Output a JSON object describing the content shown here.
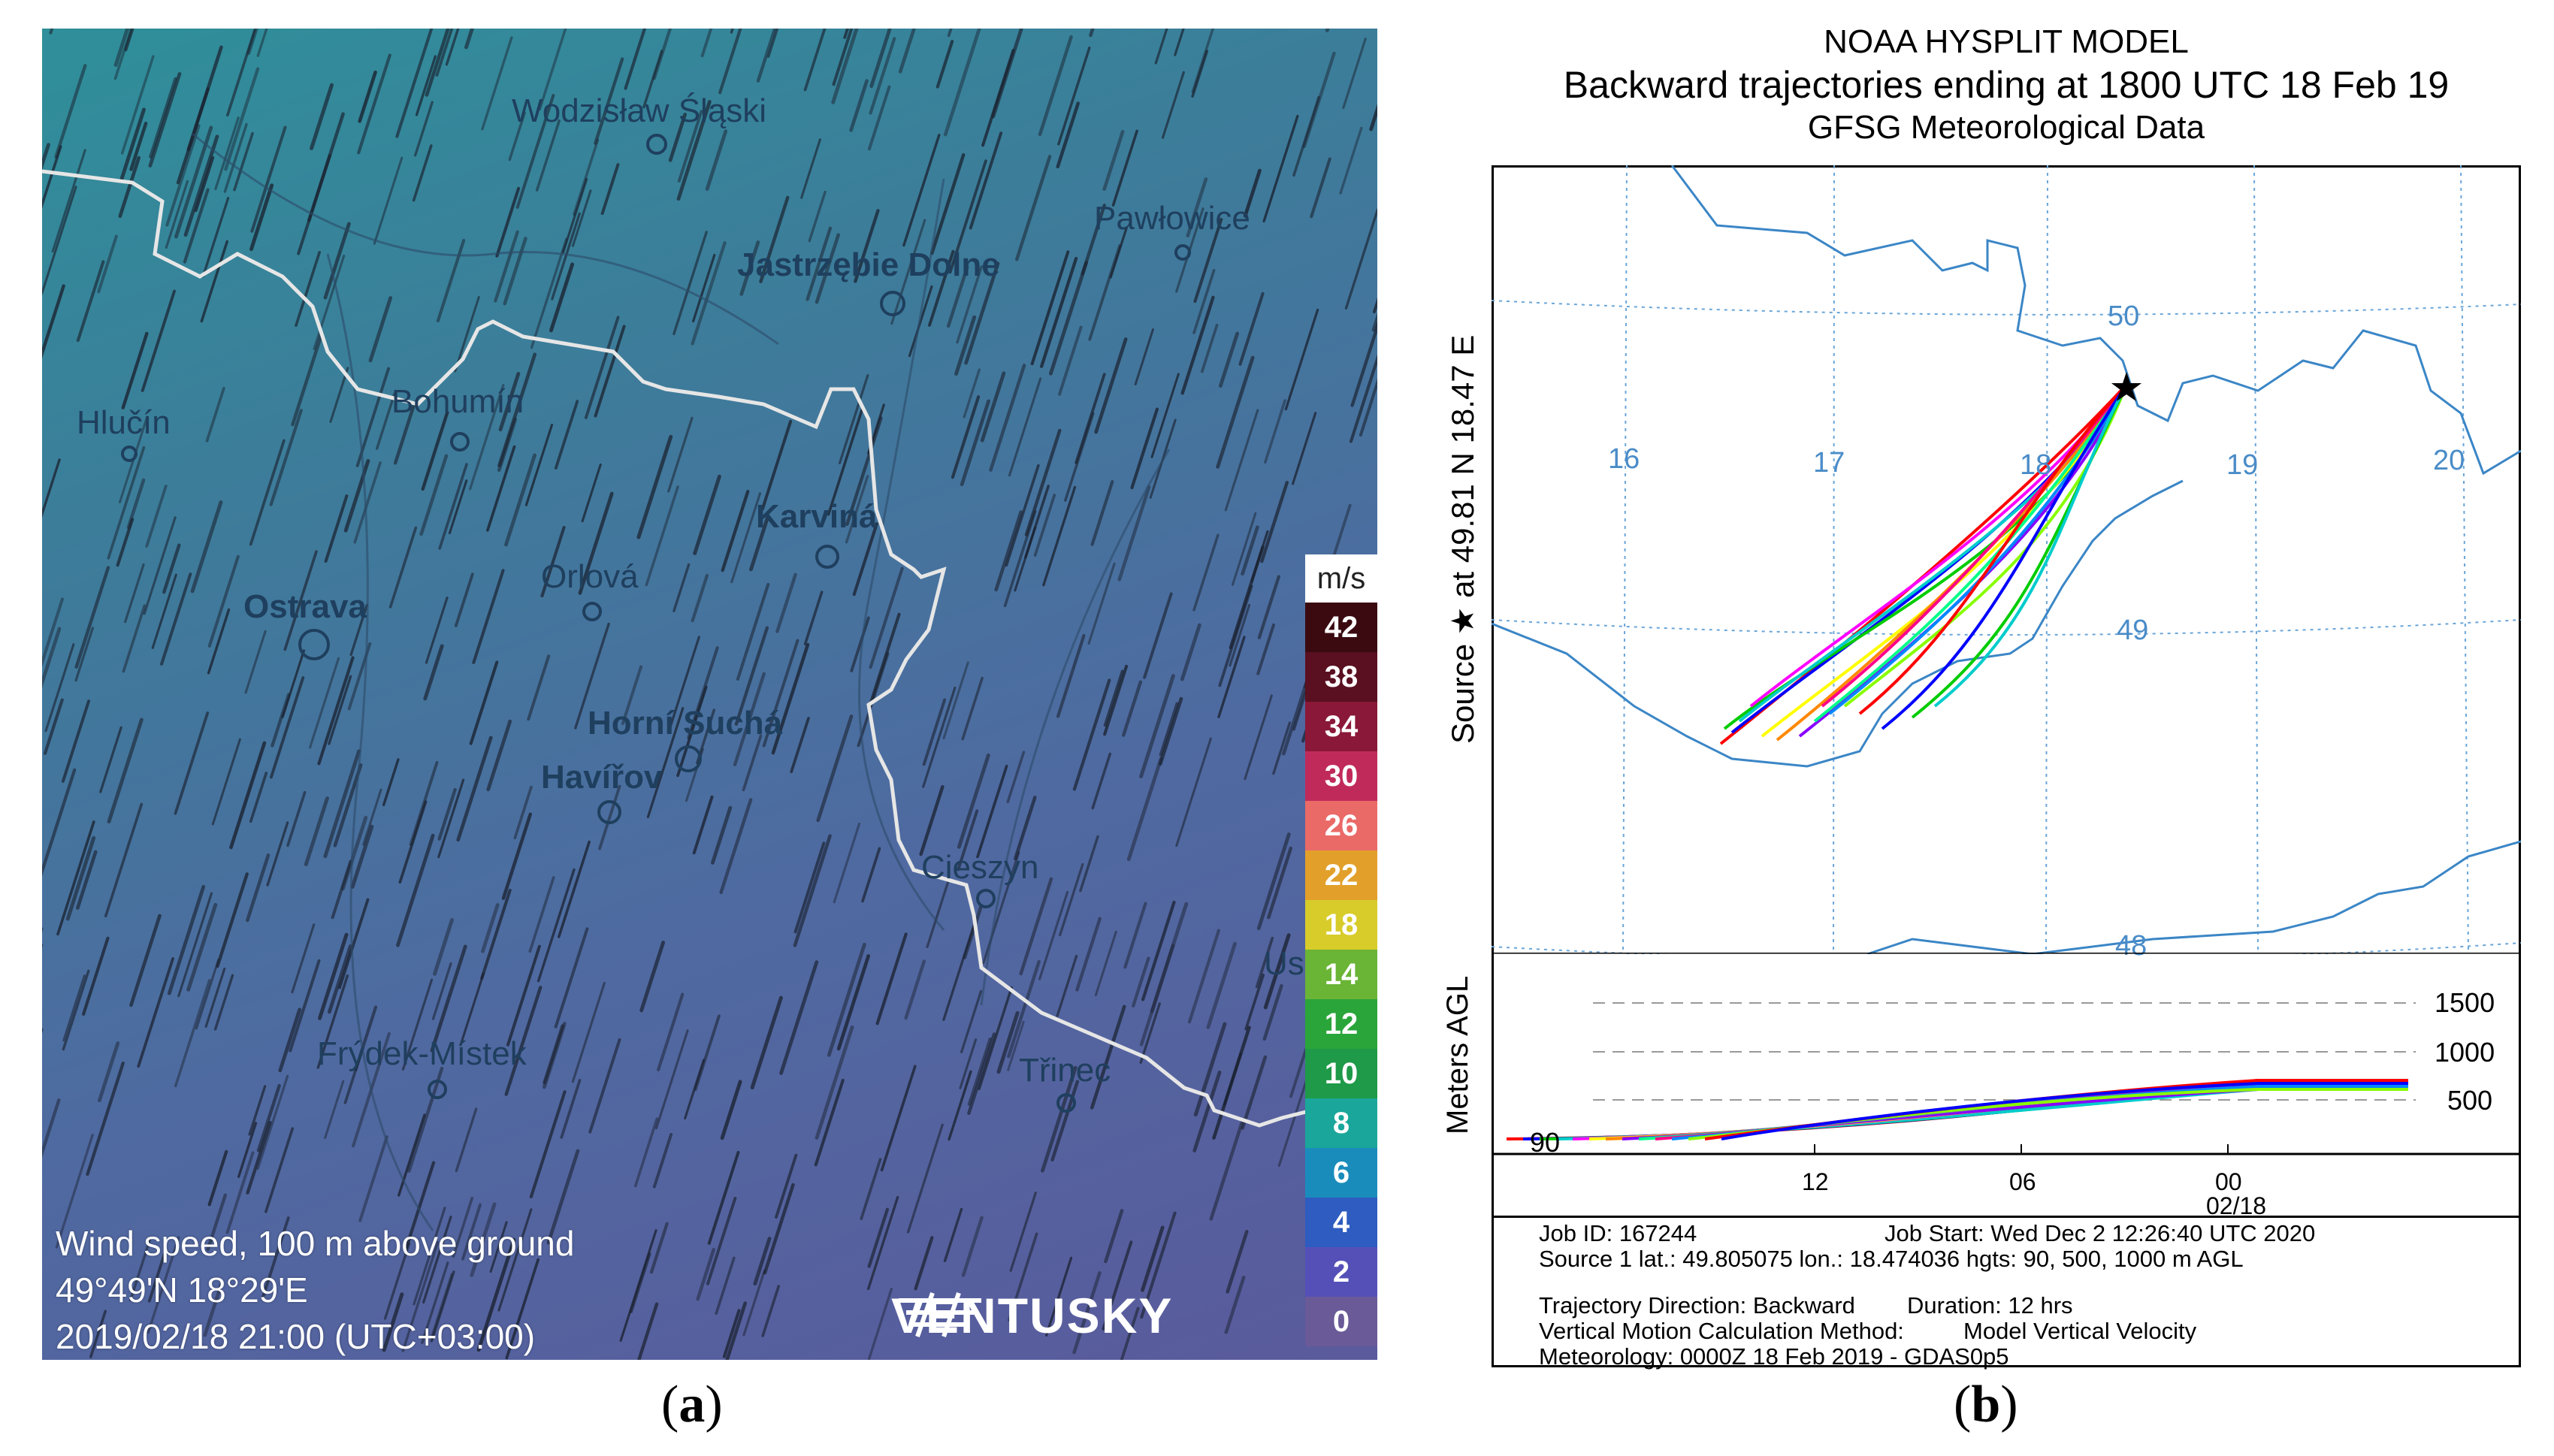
{
  "panel_a": {
    "caption": {
      "open": "(",
      "letter": "a",
      "close": ")"
    },
    "cities_small": [
      "Wodzisław Śląski",
      "Pawłowice",
      "Hlučín",
      "Bohumín",
      "Orlová",
      "Cieszyn",
      "Frýdek-Místek",
      "Třinec",
      "Us"
    ],
    "cities_bold": [
      "Jastrzębie Dolne",
      "Karviná",
      "Ostrava",
      "Horní Suchá",
      "Havířov"
    ],
    "info": {
      "line1": "Wind speed, 100 m above ground",
      "line2": "49°49'N 18°29'E",
      "line3": "2019/02/18 21:00 (UTC+03:00)"
    },
    "legend": {
      "unit": "m/s",
      "items": [
        {
          "value": "42",
          "color": "#3a0a10"
        },
        {
          "value": "38",
          "color": "#5a1020"
        },
        {
          "value": "34",
          "color": "#8a1838"
        },
        {
          "value": "30",
          "color": "#c02a5a"
        },
        {
          "value": "26",
          "color": "#ea6a68"
        },
        {
          "value": "22",
          "color": "#e2a02a"
        },
        {
          "value": "18",
          "color": "#d8cc2a"
        },
        {
          "value": "14",
          "color": "#6ab436"
        },
        {
          "value": "12",
          "color": "#2aa53a"
        },
        {
          "value": "10",
          "color": "#1e9a48"
        },
        {
          "value": "8",
          "color": "#1aa69a"
        },
        {
          "value": "6",
          "color": "#1a8cbc"
        },
        {
          "value": "4",
          "color": "#2e5cc0"
        },
        {
          "value": "2",
          "color": "#5450b8"
        },
        {
          "value": "0",
          "color": "#6a5a98"
        }
      ]
    },
    "brand": "VENTUSKY"
  },
  "panel_b": {
    "caption": {
      "open": "(",
      "letter": "b",
      "close": ")"
    },
    "title1": "NOAA HYSPLIT MODEL",
    "title2": "Backward trajectories ending at 1800 UTC 18 Feb 19",
    "title3": "GFSG Meteorological Data",
    "side_label": "Source ★  at   49.81 N   18.47 E",
    "lon_labels": [
      "16",
      "17",
      "18",
      "19",
      "20"
    ],
    "lat_labels": [
      "50",
      "49",
      "48"
    ],
    "height_axis_label": "Meters AGL",
    "height_ticks": [
      "1500",
      "1000",
      "500"
    ],
    "ground_label": "90",
    "time_ticks": [
      "12",
      "06",
      "00"
    ],
    "date_label": "02/18",
    "info_lines": {
      "job_id": "Job ID: 167244",
      "job_start": "Job Start: Wed Dec  2 12:26:40 UTC 2020",
      "source": "Source 1 lat.: 49.805075  lon.: 18.474036  hgts: 90, 500, 1000 m AGL",
      "direction": "Trajectory Direction: Backward",
      "duration": "Duration: 12 hrs",
      "vertical_method": "Vertical Motion Calculation Method:",
      "vertical_value": "Model Vertical Velocity",
      "meteorology": "Meteorology: 0000Z 18 Feb 2019 - GDAS0p5"
    },
    "trajectory_colors": [
      "#ff0000",
      "#0000ff",
      "#00cc00",
      "#00cccc",
      "#ff00ff",
      "#ffff00",
      "#ff8800",
      "#8800ff",
      "#00ff88",
      "#ff0088",
      "#0088ff",
      "#88ff00"
    ]
  }
}
